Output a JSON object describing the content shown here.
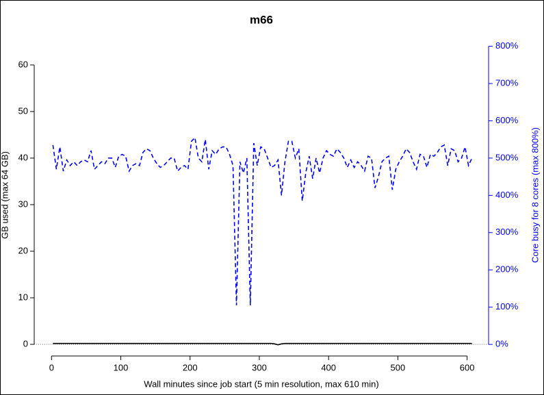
{
  "chart_data": {
    "type": "line",
    "title": "m66",
    "x_label": "Wall minutes since job start (5 min resolution, max 610 min)",
    "y_label": "GB used (max 64 GB)",
    "y2_label": "Core busy for 8 cores (max 800%)",
    "xlim": [
      -25,
      631
    ],
    "xticks": [
      0,
      100,
      200,
      300,
      400,
      500,
      600
    ],
    "ylim": [
      -2.5,
      66.9
    ],
    "yticks": [
      0,
      10,
      20,
      30,
      40,
      50,
      60
    ],
    "y2lim": [
      -31,
      836
    ],
    "y2ticks": [
      {
        "value": 0,
        "label": "0%"
      },
      {
        "value": 100,
        "label": "100%"
      },
      {
        "value": 200,
        "label": "200%"
      },
      {
        "value": 300,
        "label": "300%"
      },
      {
        "value": 400,
        "label": "400%"
      },
      {
        "value": 500,
        "label": "500%"
      },
      {
        "value": 600,
        "label": "600%"
      },
      {
        "value": 700,
        "label": "700%"
      },
      {
        "value": 800,
        "label": "800%"
      }
    ],
    "y2_color": "#0000ff",
    "x": [
      2,
      7,
      12,
      17,
      22,
      27,
      32,
      37,
      42,
      47,
      52,
      57,
      62,
      67,
      72,
      77,
      82,
      87,
      92,
      97,
      102,
      107,
      112,
      117,
      122,
      127,
      132,
      137,
      142,
      147,
      152,
      157,
      162,
      167,
      172,
      177,
      182,
      187,
      192,
      197,
      202,
      207,
      212,
      217,
      222,
      227,
      232,
      237,
      242,
      247,
      252,
      257,
      262,
      267,
      272,
      277,
      282,
      287,
      292,
      297,
      302,
      307,
      312,
      317,
      322,
      327,
      332,
      337,
      342,
      347,
      352,
      357,
      362,
      367,
      372,
      377,
      382,
      387,
      392,
      397,
      402,
      407,
      412,
      417,
      422,
      427,
      432,
      437,
      442,
      447,
      452,
      457,
      462,
      467,
      472,
      477,
      482,
      487,
      492,
      497,
      502,
      507,
      512,
      517,
      522,
      527,
      532,
      537,
      542,
      547,
      552,
      557,
      562,
      567,
      572,
      577,
      582,
      587,
      592,
      597,
      602,
      607
    ],
    "series": [
      {
        "color": "#000000",
        "dash": "solid",
        "axis": "y",
        "values": [
          0.2,
          0.2,
          0.2,
          0.2,
          0.2,
          0.2,
          0.2,
          0.2,
          0.2,
          0.2,
          0.2,
          0.2,
          0.2,
          0.2,
          0.2,
          0.2,
          0.2,
          0.2,
          0.2,
          0.2,
          0.2,
          0.2,
          0.2,
          0.2,
          0.2,
          0.2,
          0.2,
          0.2,
          0.2,
          0.2,
          0.2,
          0.2,
          0.2,
          0.2,
          0.2,
          0.2,
          0.2,
          0.2,
          0.2,
          0.2,
          0.2,
          0.2,
          0.2,
          0.2,
          0.2,
          0.2,
          0.2,
          0.2,
          0.2,
          0.2,
          0.2,
          0.2,
          0.2,
          0.2,
          0.2,
          0.2,
          0.2,
          0.2,
          0.2,
          0.2,
          0.2,
          0.2,
          0.2,
          0.2,
          0.1,
          -0.1,
          0.1,
          0.2,
          0.2,
          0.2,
          0.2,
          0.2,
          0.2,
          0.2,
          0.2,
          0.2,
          0.2,
          0.2,
          0.2,
          0.2,
          0.2,
          0.2,
          0.2,
          0.2,
          0.2,
          0.2,
          0.2,
          0.2,
          0.2,
          0.2,
          0.2,
          0.2,
          0.2,
          0.2,
          0.2,
          0.2,
          0.2,
          0.2,
          0.2,
          0.2,
          0.2,
          0.2,
          0.2,
          0.2,
          0.2,
          0.2,
          0.2,
          0.2,
          0.2,
          0.2,
          0.2,
          0.2,
          0.2,
          0.2,
          0.2,
          0.2,
          0.2,
          0.2,
          0.2,
          0.2,
          0.2,
          0.2
        ]
      },
      {
        "color": "#0000ff",
        "dash": "dashed",
        "axis": "y2",
        "values": [
          535,
          470,
          530,
          465,
          495,
          480,
          490,
          480,
          490,
          495,
          490,
          520,
          470,
          480,
          490,
          485,
          500,
          500,
          475,
          505,
          510,
          505,
          465,
          480,
          485,
          480,
          515,
          525,
          520,
          500,
          485,
          475,
          480,
          490,
          500,
          500,
          465,
          475,
          480,
          470,
          545,
          555,
          500,
          490,
          550,
          470,
          520,
          510,
          525,
          530,
          530,
          510,
          480,
          105,
          490,
          460,
          500,
          105,
          540,
          480,
          530,
          525,
          500,
          475,
          480,
          495,
          400,
          490,
          545,
          545,
          500,
          525,
          385,
          460,
          505,
          445,
          500,
          460,
          500,
          520,
          510,
          505,
          525,
          515,
          500,
          475,
          495,
          475,
          490,
          480,
          465,
          505,
          500,
          420,
          450,
          490,
          500,
          505,
          415,
          470,
          490,
          505,
          525,
          515,
          490,
          470,
          510,
          505,
          475,
          510,
          505,
          515,
          530,
          535,
          480,
          525,
          520,
          490,
          500,
          530,
          480,
          500
        ]
      }
    ]
  }
}
